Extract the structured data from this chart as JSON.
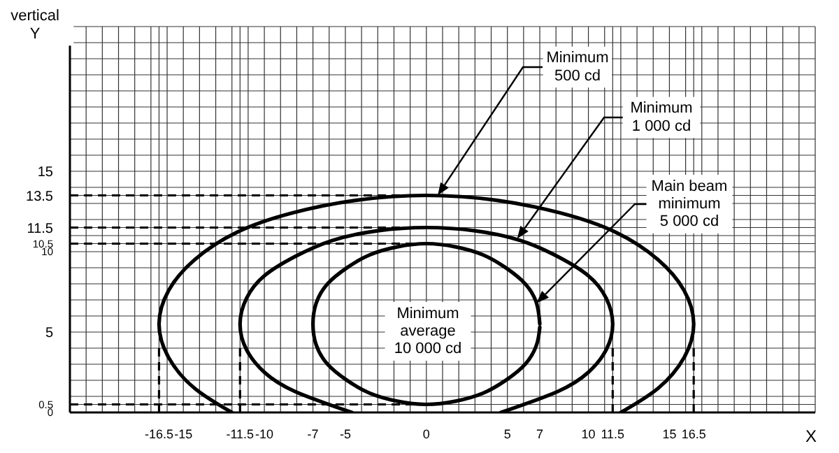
{
  "chart_data": {
    "type": "line",
    "xlabel": "X",
    "ylabel": "vertical\nY",
    "marker": "none",
    "grid": true,
    "xlim": [
      -22,
      24
    ],
    "ylim": [
      0,
      24
    ],
    "xticks": [
      {
        "value": -22,
        "label": null
      },
      {
        "value": -21,
        "label": null
      },
      {
        "value": -20,
        "label": null
      },
      {
        "value": -19,
        "label": null
      },
      {
        "value": -18,
        "label": null
      },
      {
        "value": -17,
        "label": null
      },
      -16.5,
      {
        "value": -16,
        "label": null
      },
      -15,
      {
        "value": -14,
        "label": null
      },
      {
        "value": -13,
        "label": null
      },
      {
        "value": -12,
        "label": null
      },
      -11.5,
      {
        "value": -11,
        "label": null
      },
      -10,
      {
        "value": -9,
        "label": null
      },
      {
        "value": -8,
        "label": null
      },
      -7,
      {
        "value": -6,
        "label": null
      },
      -5,
      {
        "value": -4,
        "label": null
      },
      {
        "value": -3,
        "label": null
      },
      {
        "value": -2,
        "label": null
      },
      {
        "value": -1,
        "label": null
      },
      0,
      {
        "value": 1,
        "label": null
      },
      {
        "value": 2,
        "label": null
      },
      {
        "value": 3,
        "label": null
      },
      {
        "value": 4,
        "label": null
      },
      5,
      {
        "value": 6,
        "label": null
      },
      7,
      {
        "value": 8,
        "label": null
      },
      {
        "value": 9,
        "label": null
      },
      10,
      {
        "value": 11,
        "label": null
      },
      11.5,
      {
        "value": 12,
        "label": null
      },
      {
        "value": 13,
        "label": null
      },
      {
        "value": 14,
        "label": null
      },
      15,
      {
        "value": 16,
        "label": null
      },
      16.5,
      {
        "value": 17,
        "label": null
      },
      {
        "value": 18,
        "label": null
      },
      {
        "value": 19,
        "label": null
      },
      {
        "value": 20,
        "label": null
      },
      {
        "value": 21,
        "label": null
      },
      {
        "value": 22,
        "label": null
      },
      {
        "value": 23,
        "label": null
      },
      {
        "value": 24,
        "label": null
      }
    ],
    "yticks": [
      0,
      0.5,
      {
        "value": 1,
        "label": null
      },
      {
        "value": 2,
        "label": null
      },
      {
        "value": 3,
        "label": null
      },
      {
        "value": 4,
        "label": null
      },
      5,
      {
        "value": 6,
        "label": null
      },
      {
        "value": 7,
        "label": null
      },
      {
        "value": 8,
        "label": null
      },
      {
        "value": 9,
        "label": null
      },
      10,
      10.5,
      {
        "value": 11,
        "label": null
      },
      11.5,
      {
        "value": 12,
        "label": null
      },
      {
        "value": 13,
        "label": null
      },
      13.5,
      {
        "value": 14,
        "label": null
      },
      15,
      {
        "value": 16,
        "label": null
      },
      {
        "value": 17,
        "label": null
      },
      {
        "value": 18,
        "label": null
      },
      {
        "value": 19,
        "label": null
      },
      {
        "value": 20,
        "label": null
      },
      {
        "value": 21,
        "label": null
      },
      {
        "value": 22,
        "label": null
      },
      {
        "value": 23,
        "label": null
      },
      {
        "value": 24,
        "label": null
      }
    ],
    "series": [
      {
        "color": "#000000",
        "x": [
          -12.0,
          -14.3,
          -15.9,
          -16.5,
          -15.9,
          -14.3,
          -11.7,
          -8.3,
          -4.3,
          0,
          4.3,
          8.3,
          11.7,
          14.3,
          15.9,
          16.5,
          15.9,
          14.3,
          12.0
        ],
        "values": [
          0,
          1.5,
          3.4,
          5.5,
          7.6,
          9.5,
          11.2,
          12.4,
          13.2,
          13.5,
          13.2,
          12.4,
          11.2,
          9.5,
          7.6,
          5.5,
          3.4,
          1.5,
          0
        ]
      },
      {
        "color": "#000000",
        "x": [
          -4.6,
          -8.1,
          -10.0,
          -11.1,
          -11.5,
          -11.1,
          -10.0,
          -8.1,
          -5.8,
          -3.0,
          0,
          3.0,
          5.8,
          8.1,
          10.0,
          11.1,
          11.5,
          11.1,
          10.0,
          8.1,
          4.6
        ],
        "values": [
          0,
          1.3,
          2.5,
          3.9,
          5.5,
          7.1,
          8.5,
          9.7,
          10.7,
          11.3,
          11.5,
          11.3,
          10.7,
          9.7,
          8.5,
          7.1,
          5.5,
          3.9,
          2.5,
          1.3,
          0
        ]
      },
      {
        "color": "#000000",
        "x": [
          7,
          6.8,
          6.1,
          4.9,
          3.5,
          1.8,
          0,
          -1.8,
          -3.5,
          -4.9,
          -6.1,
          -6.8,
          -7,
          -6.8,
          -6.1,
          -4.9,
          -3.5,
          -1.8,
          0,
          1.8,
          3.5,
          4.9,
          6.1,
          6.8,
          7.0
        ],
        "values": [
          5.5,
          6.8,
          8.0,
          9.0,
          9.8,
          10.3,
          10.5,
          10.3,
          9.8,
          9.0,
          8.0,
          6.8,
          5.5,
          4.2,
          3.0,
          2.0,
          1.2,
          0.7,
          0.5,
          0.7,
          1.2,
          2.0,
          3.0,
          4.2,
          5.3
        ]
      }
    ],
    "ref_lines": [
      {
        "axis": "y",
        "value": 13.5,
        "line_style": "dashed"
      },
      {
        "axis": "y",
        "value": 11.5,
        "line_style": "dashed"
      },
      {
        "axis": "y",
        "value": 10.5,
        "line_style": "dashed"
      },
      {
        "axis": "y",
        "value": 0.5,
        "line_style": "dashed"
      },
      {
        "axis": "x",
        "value": -16.5,
        "line_style": "dashed"
      },
      {
        "axis": "x",
        "value": -11.5,
        "line_style": "dashed"
      },
      {
        "axis": "x",
        "value": 11.5,
        "line_style": "dashed"
      },
      {
        "axis": "x",
        "value": 16.5,
        "line_style": "dashed"
      }
    ],
    "annotations": [
      {
        "text": "Minimum\n500 cd",
        "x": 0.7,
        "y": 13.5
      },
      {
        "text": "Minimum\n1 000 cd",
        "x": 5.6,
        "y": 10.8
      },
      {
        "text": "Main beam\nminimum\n5 000 cd",
        "x": 6.8,
        "y": 6.8
      },
      "Minimum\naverage\n10 000 cd"
    ]
  }
}
